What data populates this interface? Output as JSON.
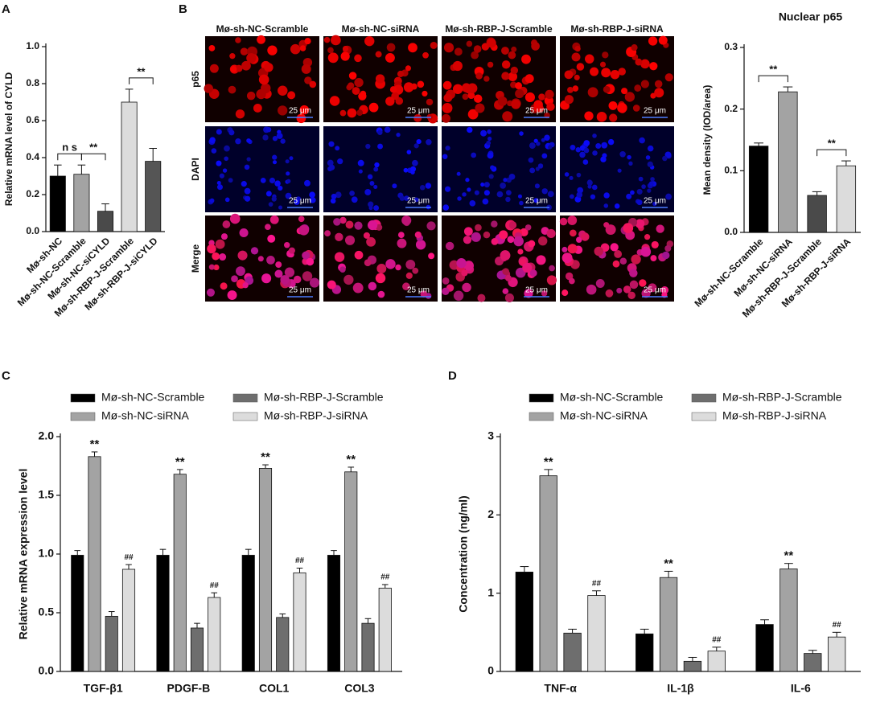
{
  "chart_data": [
    {
      "type": "bar",
      "panel": "A",
      "ylabel": "Relative mRNA  level of CYLD",
      "categories": [
        "Mø-sh-NC",
        "Mø-sh-NC-Scramble",
        "Mø-sh-NC-siCYLD",
        "Mø-sh-RBP-J-Scramble",
        "Mø-sh-RBP-J-siCYLD"
      ],
      "values": [
        0.3,
        0.31,
        0.11,
        0.7,
        0.38
      ],
      "errors": [
        0.06,
        0.05,
        0.04,
        0.07,
        0.07
      ],
      "colors": [
        "#000000",
        "#a3a3a3",
        "#4a4a4a",
        "#dcdcdc",
        "#555555"
      ],
      "ylim": [
        0,
        1.0
      ],
      "yticks": [
        {
          "value": 0,
          "label": "0.0"
        },
        0.2,
        0.4,
        0.6,
        0.8,
        {
          "value": 1.0,
          "label": "1.0"
        }
      ],
      "annotations": [
        {
          "text": "n s",
          "between": [
            0,
            1
          ]
        },
        {
          "text": "**",
          "between": [
            1,
            2
          ]
        },
        {
          "text": "**",
          "between": [
            3,
            4
          ]
        }
      ]
    },
    {
      "type": "bar",
      "title": "Nuclear p65",
      "ylabel": "Mean density (IOD/area)",
      "categories": [
        "Mø-sh-NC-Scramble",
        "Mø-sh-NC-siRNA",
        "Mø-sh-RBP-J-Scramble",
        "Mø-sh-RBP-J-siRNA"
      ],
      "values": [
        0.14,
        0.228,
        0.06,
        0.108
      ],
      "errors": [
        0.005,
        0.008,
        0.006,
        0.008
      ],
      "colors": [
        "#000000",
        "#a3a3a3",
        "#4a4a4a",
        "#dcdcdc"
      ],
      "ylim": [
        0,
        0.3
      ],
      "yticks": [
        {
          "value": 0,
          "label": "0.0"
        },
        0.1,
        0.2,
        0.3
      ],
      "annotations": [
        {
          "text": "**",
          "between": [
            0,
            1
          ]
        },
        {
          "text": "**",
          "between": [
            2,
            3
          ]
        }
      ]
    },
    {
      "type": "bar",
      "panel": "C",
      "ylabel": "Relative mRNA expression level",
      "categories": [
        "TGF-β1",
        "PDGF-B",
        "COL1",
        "COL3"
      ],
      "series": [
        {
          "name": "Mø-sh-NC-Scramble",
          "color": "#000000",
          "values": [
            0.99,
            0.99,
            0.99,
            0.99
          ],
          "errors": [
            0.04,
            0.05,
            0.05,
            0.04
          ]
        },
        {
          "name": "Mø-sh-NC-siRNA",
          "color": "#a3a3a3",
          "values": [
            1.83,
            1.68,
            1.73,
            1.7
          ],
          "errors": [
            0.04,
            0.04,
            0.03,
            0.04
          ],
          "label": "**"
        },
        {
          "name": "Mø-sh-RBP-J-Scramble",
          "color": "#6e6e6e",
          "values": [
            0.47,
            0.37,
            0.46,
            0.41
          ],
          "errors": [
            0.04,
            0.04,
            0.03,
            0.04
          ]
        },
        {
          "name": "Mø-sh-RBP-J-siRNA",
          "color": "#dcdcdc",
          "values": [
            0.87,
            0.63,
            0.84,
            0.71
          ],
          "errors": [
            0.04,
            0.04,
            0.04,
            0.03
          ],
          "label": "##"
        }
      ],
      "ylim": [
        0,
        2.0
      ],
      "yticks": [
        {
          "value": 0,
          "label": "0.0"
        },
        0.5,
        {
          "value": 1.0,
          "label": "1.0"
        },
        1.5,
        {
          "value": 2.0,
          "label": "2.0"
        }
      ]
    },
    {
      "type": "bar",
      "panel": "D",
      "ylabel": "Concentration (ng/ml)",
      "categories": [
        "TNF-α",
        "IL-1β",
        "IL-6"
      ],
      "series": [
        {
          "name": "Mø-sh-NC-Scramble",
          "color": "#000000",
          "values": [
            1.27,
            0.48,
            0.6
          ],
          "errors": [
            0.07,
            0.06,
            0.06
          ]
        },
        {
          "name": "Mø-sh-NC-siRNA",
          "color": "#a3a3a3",
          "values": [
            2.5,
            1.2,
            1.31
          ],
          "errors": [
            0.08,
            0.08,
            0.07
          ],
          "label": "**"
        },
        {
          "name": "Mø-sh-RBP-J-Scramble",
          "color": "#6e6e6e",
          "values": [
            0.49,
            0.13,
            0.23
          ],
          "errors": [
            0.05,
            0.05,
            0.04
          ]
        },
        {
          "name": "Mø-sh-RBP-J-siRNA",
          "color": "#dcdcdc",
          "values": [
            0.97,
            0.26,
            0.44
          ],
          "errors": [
            0.06,
            0.05,
            0.06
          ],
          "label": "##"
        }
      ],
      "ylim": [
        0,
        3
      ],
      "yticks": [
        0,
        1,
        2,
        3
      ]
    }
  ],
  "image_panel": {
    "panel": "B",
    "columns": [
      "Mø-sh-NC-Scramble",
      "Mø-sh-NC-siRNA",
      "Mø-sh-RBP-J-Scramble",
      "Mø-sh-RBP-J-siRNA"
    ],
    "rows": [
      "p65",
      "DAPI",
      "Merge"
    ],
    "scale_bar": "25 μm"
  }
}
